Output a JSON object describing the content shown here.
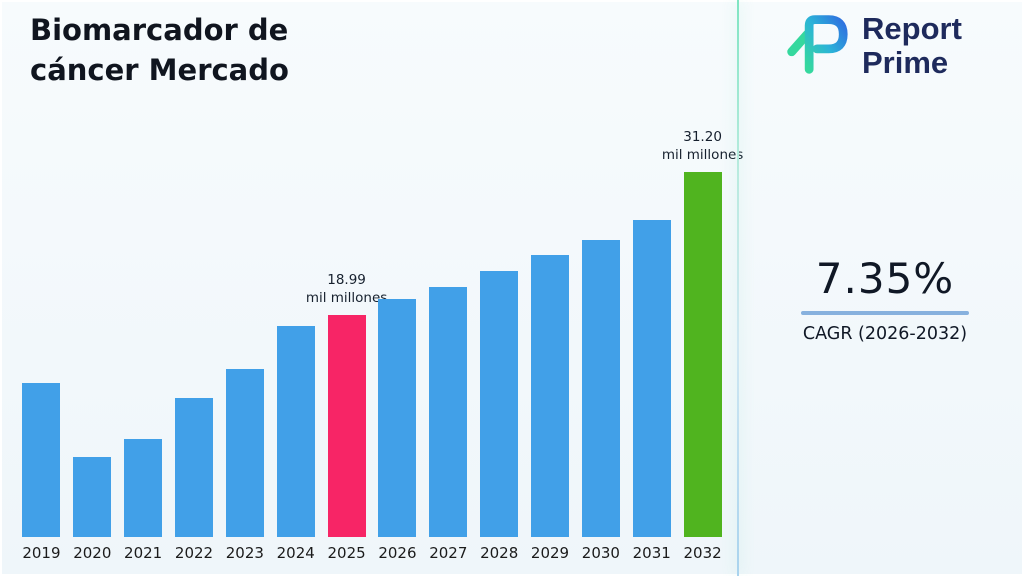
{
  "page": {
    "title_line1": "Biomarcador de",
    "title_line2": "cáncer Mercado"
  },
  "logo": {
    "line1": "Report",
    "line2": "Prime",
    "mark_colors": {
      "teal": "#35d89e",
      "mid": "#2bb3d8",
      "blue": "#2f6fe0"
    },
    "text_color": "#1e2a5c"
  },
  "stats": {
    "cagr_value": "7.35%",
    "cagr_label": "CAGR (2026-2032)",
    "rule_color": "#87b1de"
  },
  "chart_data": {
    "type": "bar",
    "title": "Biomarcador de cáncer Mercado",
    "unit": "mil millones",
    "categories": [
      "2019",
      "2020",
      "2021",
      "2022",
      "2023",
      "2024",
      "2025",
      "2026",
      "2027",
      "2028",
      "2029",
      "2030",
      "2031",
      "2032"
    ],
    "values": [
      13.2,
      6.8,
      8.4,
      11.9,
      14.4,
      18.0,
      18.99,
      20.3,
      21.4,
      22.7,
      24.1,
      25.4,
      27.1,
      31.2
    ],
    "ylim": [
      0,
      33
    ],
    "grid": false,
    "legend": false,
    "xlabel": "",
    "ylabel": "",
    "bar_colors": {
      "default": "#41a0e8",
      "2025": "#f72566",
      "2032": "#50b41f"
    },
    "annotations": [
      {
        "category": "2025",
        "line1": "18.99",
        "line2": "mil millones"
      },
      {
        "category": "2032",
        "line1": "31.20",
        "line2": "mil millones"
      }
    ]
  }
}
